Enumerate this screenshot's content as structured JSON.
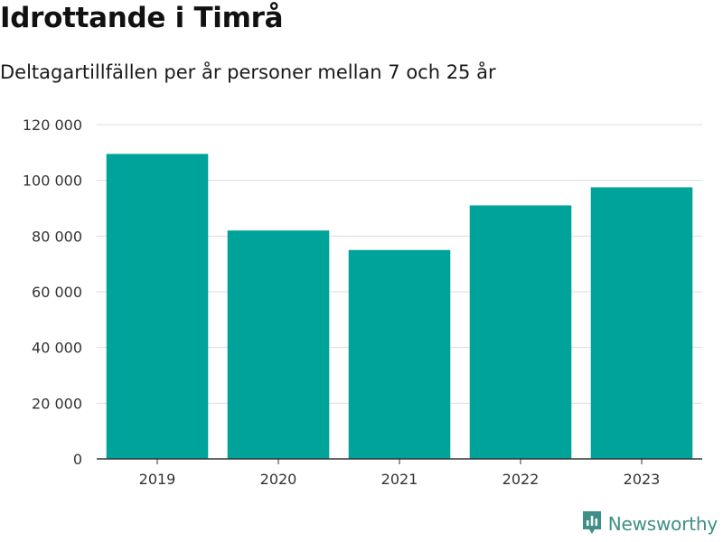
{
  "title": "Idrottande i Timrå",
  "subtitle": "Deltagartillfällen per år personer mellan 7 och 25 år",
  "brand": {
    "name": "Newsworthy",
    "icon": "newsworthy-logo-icon",
    "color": "#3d8f87"
  },
  "colors": {
    "bar": "#00a399",
    "grid": "#dddddd",
    "axis": "#333333"
  },
  "chart_data": {
    "type": "bar",
    "categories": [
      "2019",
      "2020",
      "2021",
      "2022",
      "2023"
    ],
    "values": [
      109500,
      82000,
      75000,
      91000,
      97500
    ],
    "ylim": [
      0,
      120000
    ],
    "yticks": [
      0,
      20000,
      40000,
      60000,
      80000,
      100000,
      120000
    ],
    "ytick_labels": [
      "0",
      "20 000",
      "40 000",
      "60 000",
      "80 000",
      "100 000",
      "120 000"
    ],
    "grid": true,
    "legend": "none"
  }
}
